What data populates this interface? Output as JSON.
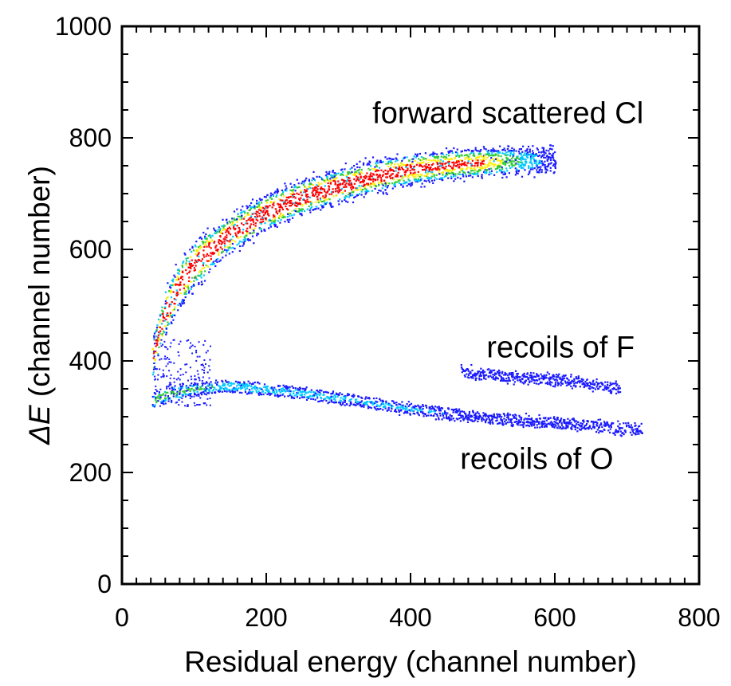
{
  "chart_data": {
    "type": "heatmap",
    "title": "",
    "xlabel": "Residual energy (channel number)",
    "ylabel_symbol": "ΔE",
    "ylabel_rest": " (channel number)",
    "xlim": [
      0,
      800
    ],
    "ylim": [
      0,
      1000
    ],
    "x_ticks": [
      0,
      200,
      400,
      600,
      800
    ],
    "y_ticks": [
      0,
      200,
      400,
      600,
      800,
      1000
    ],
    "grid": false,
    "colormap": [
      "#1a1aff",
      "#00c8ff",
      "#33cc33",
      "#ffee00",
      "#ff0000"
    ],
    "bands": [
      {
        "name": "forward scattered Cl",
        "ridge": [
          [
            42,
            405
          ],
          [
            50,
            450
          ],
          [
            60,
            490
          ],
          [
            80,
            540
          ],
          [
            100,
            575
          ],
          [
            150,
            630
          ],
          [
            200,
            668
          ],
          [
            250,
            695
          ],
          [
            300,
            715
          ],
          [
            350,
            732
          ],
          [
            400,
            745
          ],
          [
            450,
            752
          ],
          [
            500,
            757
          ],
          [
            550,
            760
          ],
          [
            600,
            762
          ]
        ],
        "density": [
          [
            42,
            0.95
          ],
          [
            100,
            1.0
          ],
          [
            300,
            1.0
          ],
          [
            500,
            0.85
          ],
          [
            550,
            0.5
          ],
          [
            600,
            0.15
          ]
        ]
      },
      {
        "name": "recoils of O",
        "ridge": [
          [
            42,
            330
          ],
          [
            60,
            340
          ],
          [
            100,
            352
          ],
          [
            150,
            356
          ],
          [
            200,
            350
          ],
          [
            300,
            335
          ],
          [
            400,
            315
          ],
          [
            500,
            300
          ],
          [
            600,
            290
          ],
          [
            700,
            280
          ],
          [
            720,
            278
          ]
        ],
        "density": [
          [
            42,
            0.6
          ],
          [
            150,
            0.45
          ],
          [
            400,
            0.3
          ],
          [
            600,
            0.22
          ],
          [
            720,
            0.1
          ]
        ]
      },
      {
        "name": "recoils of F",
        "ridge": [
          [
            470,
            382
          ],
          [
            550,
            372
          ],
          [
            600,
            368
          ],
          [
            650,
            360
          ],
          [
            690,
            352
          ]
        ],
        "density": [
          [
            470,
            0.15
          ],
          [
            600,
            0.22
          ],
          [
            690,
            0.12
          ]
        ]
      }
    ],
    "annotations": [
      {
        "text": "forward scattered Cl",
        "x": 535,
        "y": 845
      },
      {
        "text": "recoils of F",
        "x": 608,
        "y": 425
      },
      {
        "text": "recoils of O",
        "x": 575,
        "y": 225
      }
    ]
  }
}
